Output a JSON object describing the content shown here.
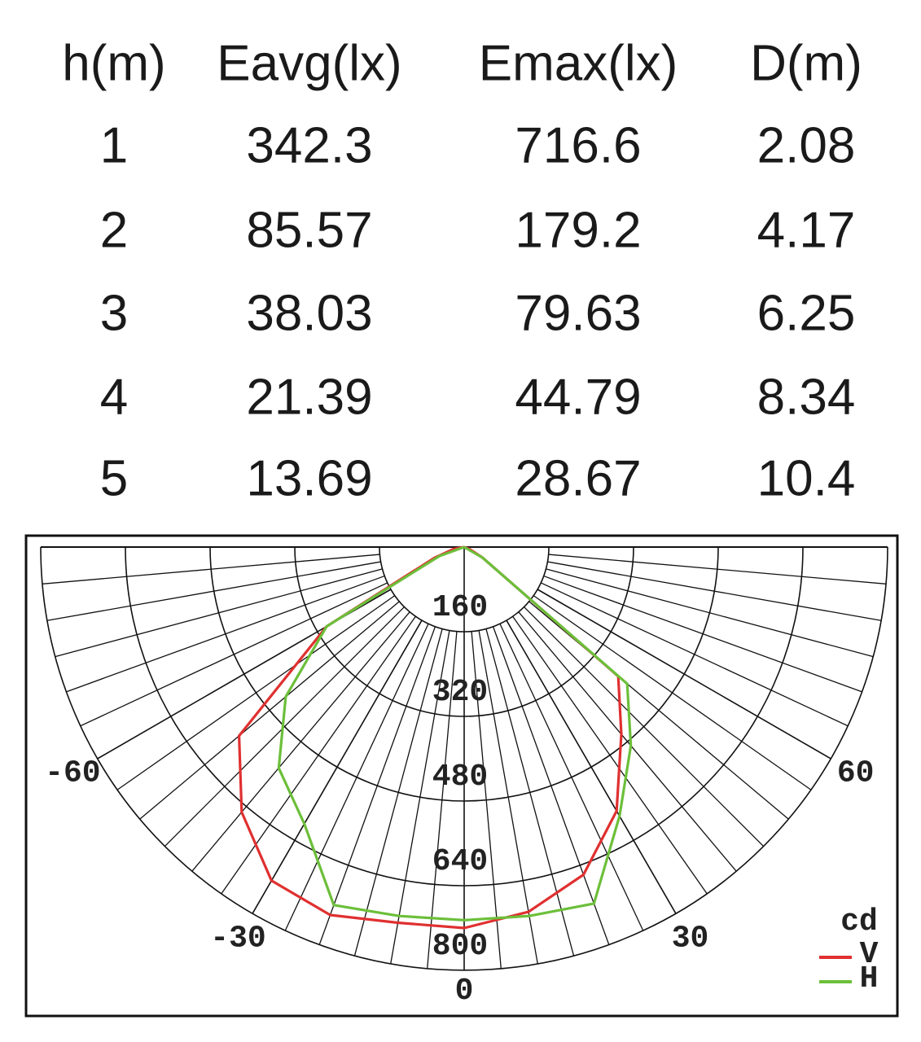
{
  "table": {
    "header": [
      "h(m)",
      "Eavg(lx)",
      "Emax(lx)",
      "D(m)"
    ],
    "rows": [
      [
        1,
        342.3,
        716.6,
        2.08
      ],
      [
        2,
        85.57,
        179.2,
        4.17
      ],
      [
        3,
        38.03,
        79.63,
        6.25
      ],
      [
        4,
        21.39,
        44.79,
        8.34
      ],
      [
        5,
        13.69,
        28.67,
        10.4
      ]
    ]
  },
  "chart_data": {
    "type": "polar",
    "unit": "cd",
    "x": [
      -90,
      -80,
      -70,
      -60,
      -50,
      -40,
      -30,
      -20,
      -10,
      0,
      10,
      20,
      30,
      40,
      50,
      60,
      70,
      80,
      90
    ],
    "xlim": [
      -90,
      90
    ],
    "xticks": [
      -60,
      -30,
      0,
      30,
      60
    ],
    "ylim": [
      0,
      800
    ],
    "yticks": [
      160,
      320,
      480,
      640,
      800
    ],
    "series": [
      {
        "name": "V",
        "color": "#e03030",
        "values": [
          0,
          20,
          60,
          300,
          555,
          654,
          728,
          740,
          721,
          720,
          700,
          659,
          576,
          462,
          380,
          40,
          10,
          0,
          0
        ]
      },
      {
        "name": "H",
        "color": "#6cbf3a",
        "values": [
          0,
          0,
          50,
          300,
          440,
          545,
          604,
          720,
          708,
          705,
          708,
          717,
          587,
          490,
          402,
          40,
          0,
          0,
          0
        ]
      }
    ]
  }
}
